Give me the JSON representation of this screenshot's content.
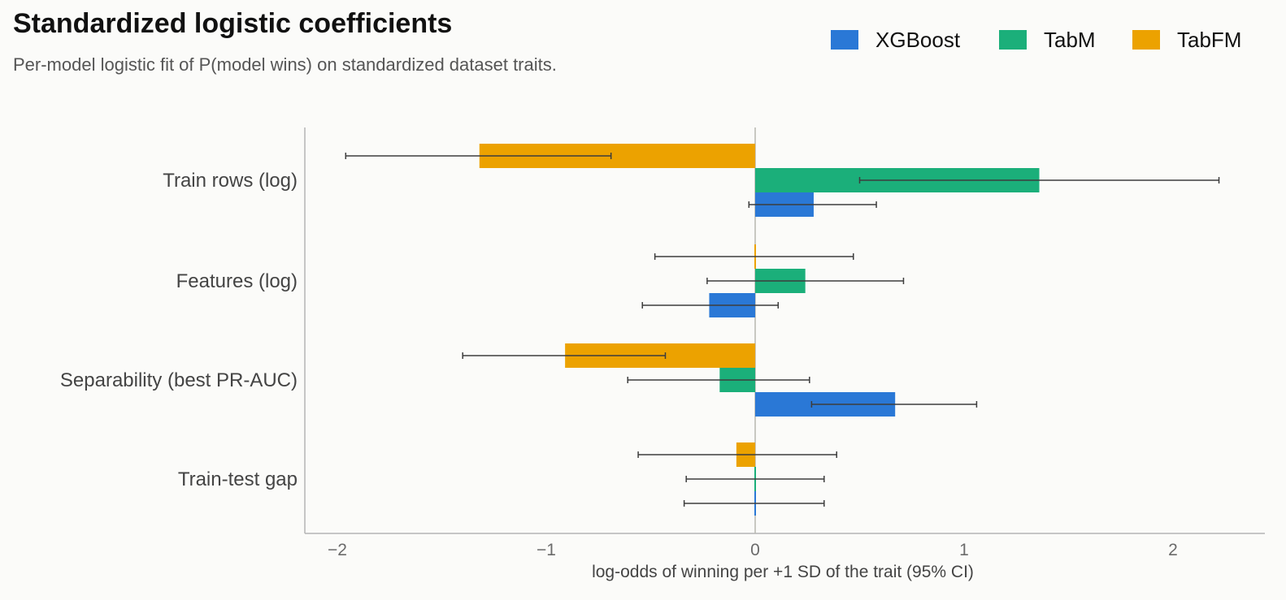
{
  "chart_data": {
    "type": "bar",
    "orientation": "horizontal",
    "title": "Standardized logistic coefficients",
    "subtitle": "Per-model logistic fit of P(model wins) on standardized dataset traits.",
    "xlabel": "log-odds of winning per +1 SD of the trait  (95% CI)",
    "ylabel": "",
    "xlim": [
      -2.17,
      2.43
    ],
    "xticks": [
      -2,
      -1,
      0,
      1,
      2
    ],
    "xtick_labels": [
      "−2",
      "−1",
      "0",
      "1",
      "2"
    ],
    "grid": false,
    "legend_position": "top-right",
    "categories": [
      "Train rows (log)",
      "Features (log)",
      "Separability (best PR-AUC)",
      "Train-test gap"
    ],
    "series": [
      {
        "name": "XGBoost",
        "color": "#2a78d6",
        "values": [
          0.28,
          -0.22,
          0.67,
          0.0
        ],
        "ci_low": [
          -0.03,
          -0.54,
          0.27,
          -0.34
        ],
        "ci_high": [
          0.58,
          0.11,
          1.06,
          0.33
        ]
      },
      {
        "name": "TabM",
        "color": "#1baf7a",
        "values": [
          1.36,
          0.24,
          -0.17,
          0.0
        ],
        "ci_low": [
          0.5,
          -0.23,
          -0.61,
          -0.33
        ],
        "ci_high": [
          2.22,
          0.71,
          0.26,
          0.33
        ]
      },
      {
        "name": "TabFM",
        "color": "#eca200",
        "values": [
          -1.32,
          0.0,
          -0.91,
          -0.09
        ],
        "ci_low": [
          -1.96,
          -0.48,
          -1.4,
          -0.56
        ],
        "ci_high": [
          -0.69,
          0.47,
          -0.43,
          0.39
        ]
      }
    ]
  }
}
